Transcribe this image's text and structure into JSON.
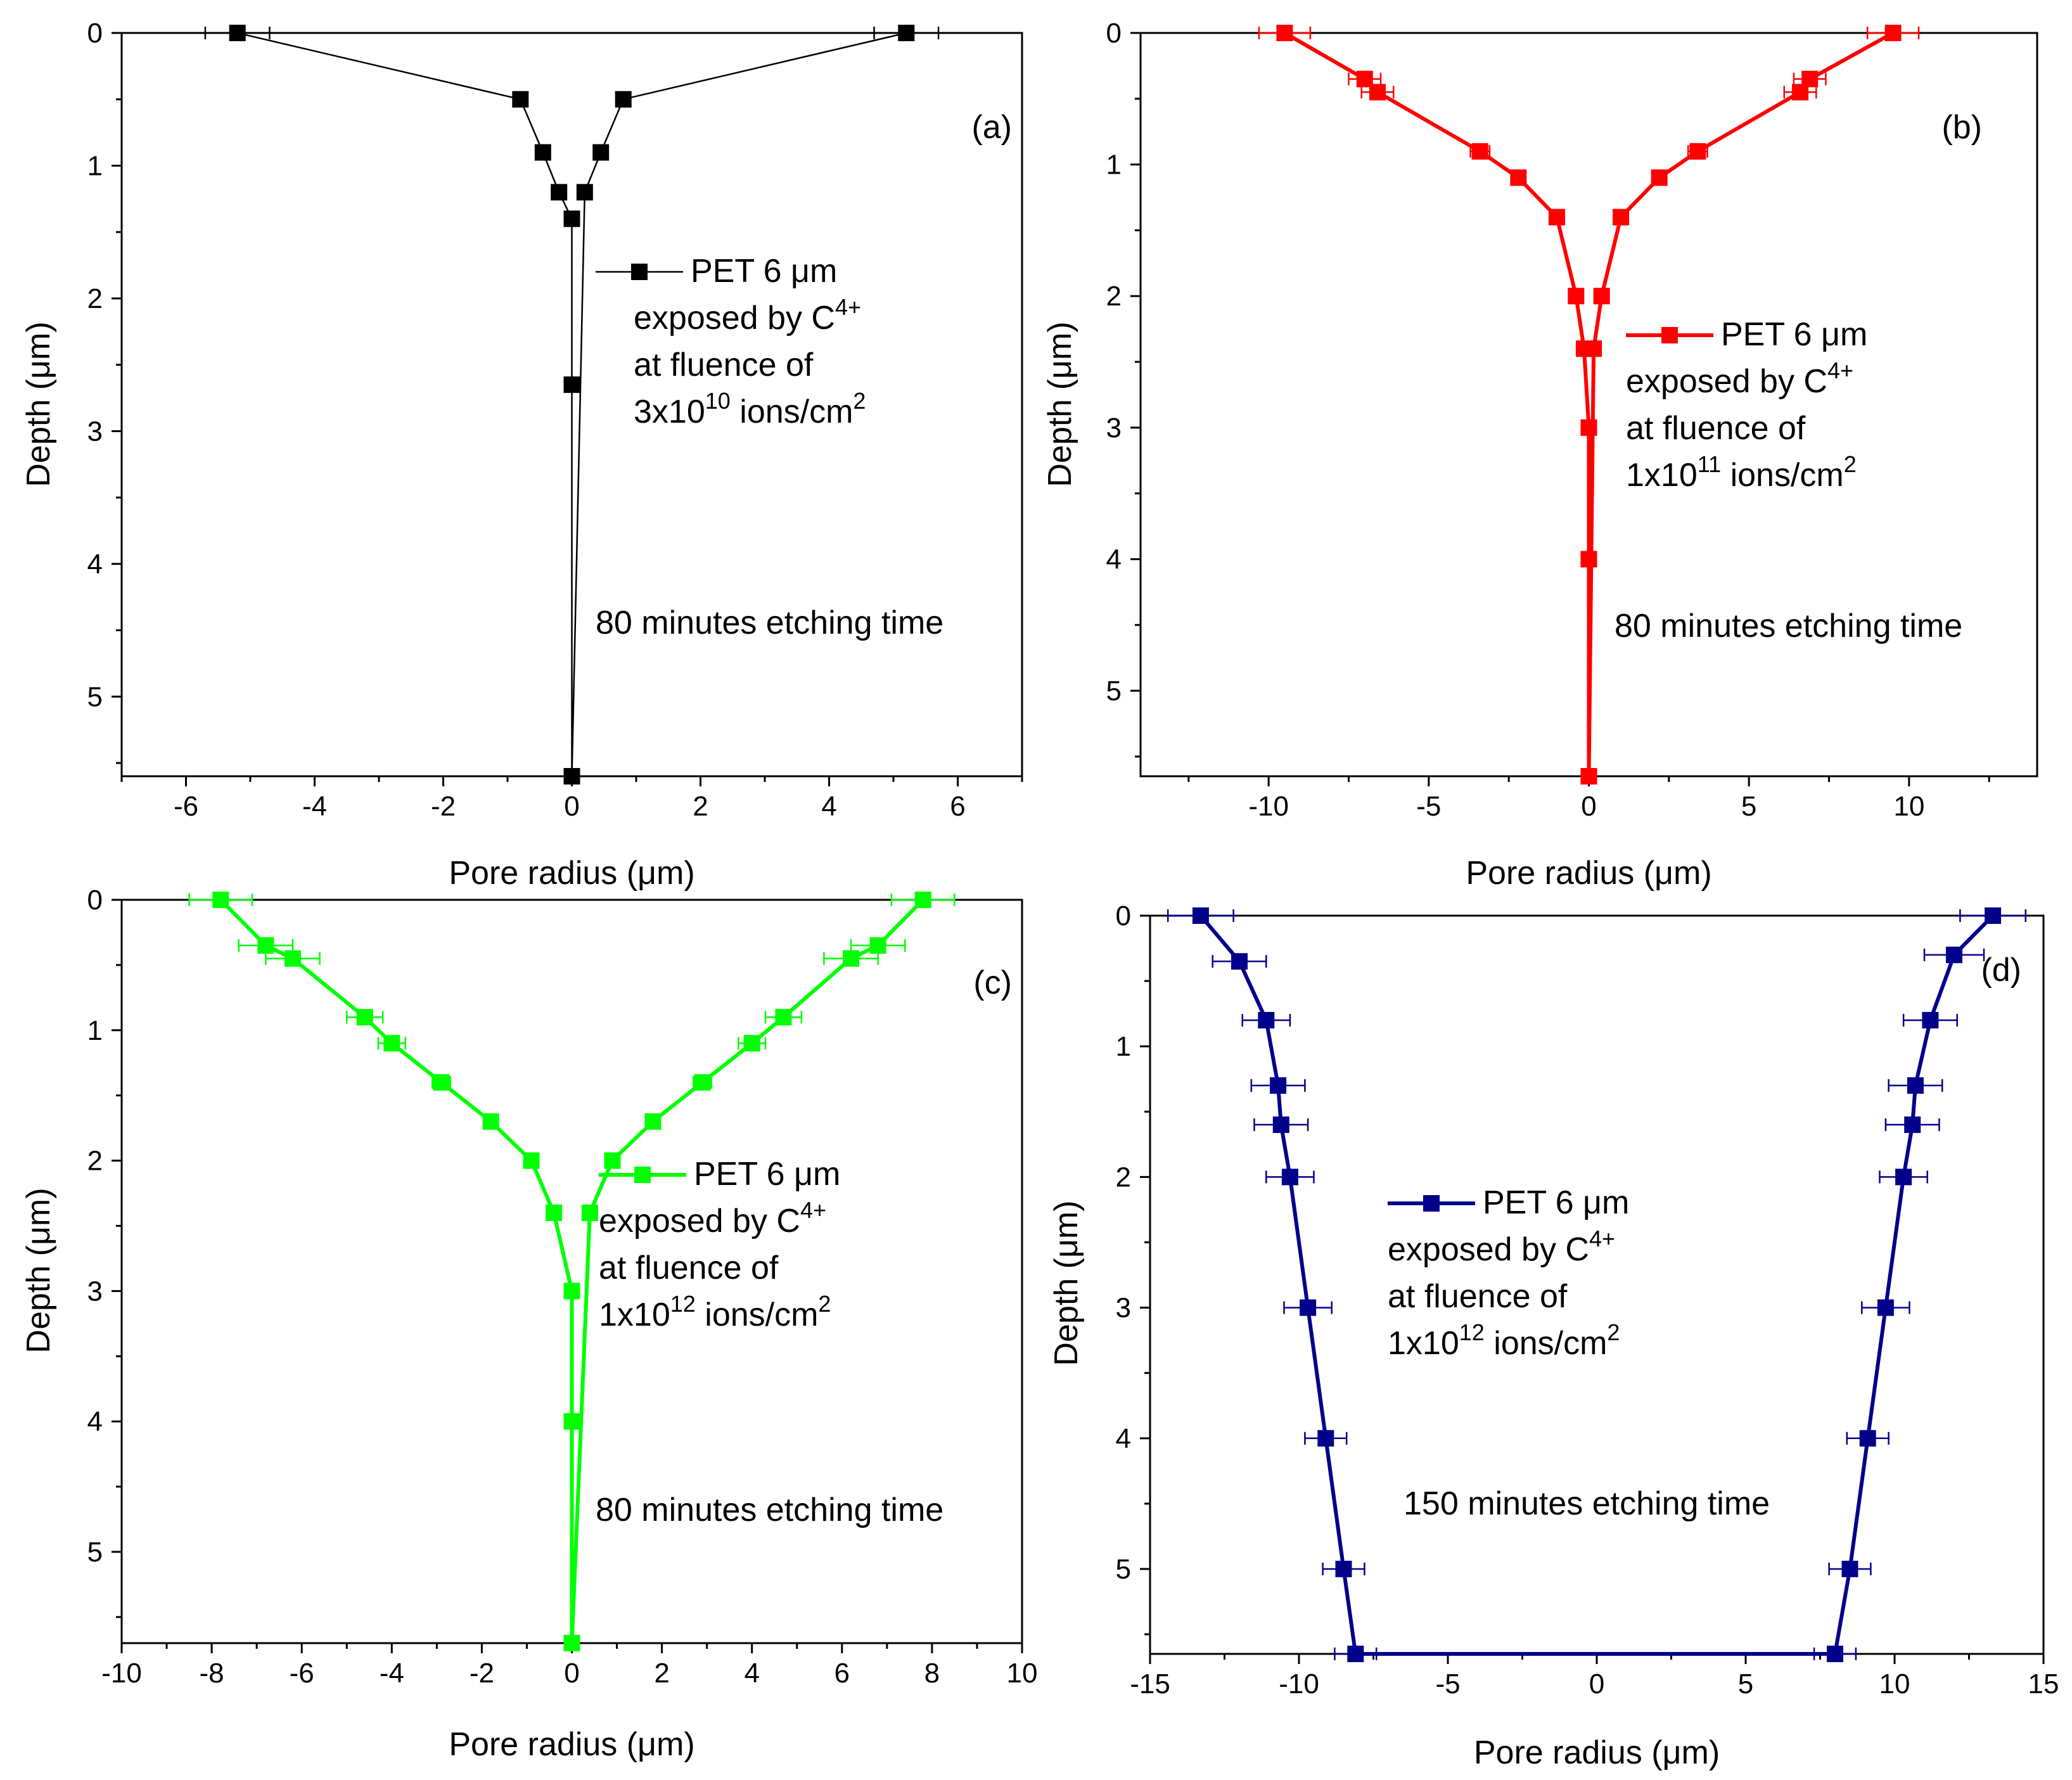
{
  "chart_data": [
    {
      "type": "line",
      "panel_label": "(a)",
      "color": "#000000",
      "xlabel_text": "Pore radius (",
      "xlabel_unit": "μm",
      "xlabel_close": ")",
      "ylabel_text": "Depth (",
      "ylabel_unit": "μm",
      "ylabel_close": ")",
      "xlim": [
        -7,
        7
      ],
      "ylim": [
        0,
        5.6
      ],
      "x_ticks": [
        -6,
        -4,
        -2,
        0,
        2,
        4,
        6
      ],
      "x_tick_labels": [
        "-6",
        "-4",
        "-2",
        "0",
        "2",
        "4",
        "6"
      ],
      "y_ticks": [
        0,
        1,
        2,
        3,
        4,
        5
      ],
      "y_tick_labels": [
        "0",
        "1",
        "2",
        "3",
        "4",
        "5"
      ],
      "legend": {
        "line1_a": "PET 6 ",
        "line1_unit": "μm",
        "line2": "exposed by C",
        "line2_sup": "4+",
        "line3": "at fluence of",
        "line4_a": "3x10",
        "line4_sup": "10",
        "line4_b": " ions/cm",
        "line4_sup2": "2"
      },
      "annotation": "80 minutes etching time",
      "x": [
        -5.2,
        -0.8,
        -0.45,
        -0.2,
        0,
        0,
        0,
        0.2,
        0.45,
        0.8,
        5.2
      ],
      "y": [
        0,
        0.5,
        0.9,
        1.2,
        1.4,
        2.65,
        5.6,
        1.2,
        0.9,
        0.5,
        0
      ],
      "x_err": [
        0.5,
        0,
        0,
        0,
        0,
        0,
        0,
        0,
        0,
        0,
        0.5
      ]
    },
    {
      "type": "line",
      "panel_label": "(b)",
      "color": "#ff0000",
      "xlabel_text": "Pore radius (",
      "xlabel_unit": "μm",
      "xlabel_close": ")",
      "ylabel_text": "Depth (",
      "ylabel_unit": "μm",
      "ylabel_close": ")",
      "xlim": [
        -14,
        14
      ],
      "ylim": [
        0,
        5.65
      ],
      "x_ticks": [
        -10,
        -5,
        0,
        5,
        10
      ],
      "x_tick_labels": [
        "-10",
        "-5",
        "0",
        "5",
        "10"
      ],
      "y_ticks": [
        0,
        1,
        2,
        3,
        4,
        5
      ],
      "y_tick_labels": [
        "0",
        "1",
        "2",
        "3",
        "4",
        "5"
      ],
      "legend": {
        "line1_a": "PET 6 ",
        "line1_unit": "μm",
        "line2": "exposed by C",
        "line2_sup": "4+",
        "line3": "at fluence of",
        "line4_a": "1x10",
        "line4_sup": "11",
        "line4_b": " ions/cm",
        "line4_sup2": "2"
      },
      "annotation": "80 minutes etching time",
      "x": [
        -9.5,
        -7.0,
        -6.6,
        -3.4,
        -2.2,
        -1.0,
        -0.4,
        -0.15,
        0,
        0,
        0,
        0.15,
        0.4,
        1.0,
        2.2,
        3.4,
        6.6,
        6.9,
        9.5
      ],
      "y": [
        0,
        0.35,
        0.45,
        0.9,
        1.1,
        1.4,
        2.0,
        2.4,
        3.0,
        4.0,
        5.65,
        2.4,
        2.0,
        1.4,
        1.1,
        0.9,
        0.45,
        0.35,
        0
      ],
      "x_err": [
        0.8,
        0.5,
        0.5,
        0.3,
        0,
        0,
        0,
        0.2,
        0,
        0,
        0,
        0.2,
        0,
        0,
        0,
        0.3,
        0.5,
        0.5,
        0.8
      ]
    },
    {
      "type": "line",
      "panel_label": "(c)",
      "color": "#00ff00",
      "xlabel_text": "Pore radius (",
      "xlabel_unit": "μm",
      "xlabel_close": ")",
      "ylabel_text": "Depth (",
      "ylabel_unit": "μm",
      "ylabel_close": ")",
      "xlim": [
        -10,
        10
      ],
      "ylim": [
        0,
        5.7
      ],
      "x_ticks": [
        -10,
        -8,
        -6,
        -4,
        -2,
        0,
        2,
        4,
        6,
        8,
        10
      ],
      "x_tick_labels": [
        "-10",
        "-8",
        "-6",
        "-4",
        "-2",
        "0",
        "2",
        "4",
        "6",
        "8",
        "10"
      ],
      "y_ticks": [
        0,
        1,
        2,
        3,
        4,
        5
      ],
      "y_tick_labels": [
        "0",
        "1",
        "2",
        "3",
        "4",
        "5"
      ],
      "legend": {
        "line1_a": "PET 6 ",
        "line1_unit": "μm",
        "line2": "exposed by C",
        "line2_sup": "4+",
        "line3": "at fluence of",
        "line4_a": "1x10",
        "line4_sup": "12",
        "line4_b": " ions/cm",
        "line4_sup2": "2"
      },
      "annotation": "80 minutes etching time",
      "x": [
        -7.8,
        -6.8,
        -6.2,
        -4.6,
        -4.0,
        -2.9,
        -1.8,
        -0.9,
        -0.4,
        0,
        0,
        0,
        0.4,
        0.9,
        1.8,
        2.9,
        4.0,
        4.7,
        6.2,
        6.8,
        7.8
      ],
      "y": [
        0,
        0.35,
        0.45,
        0.9,
        1.1,
        1.4,
        1.7,
        2.0,
        2.4,
        3.0,
        4.0,
        5.7,
        2.4,
        2.0,
        1.7,
        1.4,
        1.1,
        0.9,
        0.45,
        0.35,
        0
      ],
      "x_err": [
        0.7,
        0.6,
        0.6,
        0.4,
        0.3,
        0.2,
        0,
        0,
        0,
        0,
        0,
        0,
        0,
        0,
        0,
        0.2,
        0.3,
        0.4,
        0.6,
        0.6,
        0.7
      ]
    },
    {
      "type": "line",
      "panel_label": "(d)",
      "color": "#00008b",
      "xlabel_text": "Pore radius (",
      "xlabel_unit": "μm",
      "xlabel_close": ")",
      "ylabel_text": "Depth (",
      "ylabel_unit": "μm",
      "ylabel_close": ")",
      "xlim": [
        -15,
        15
      ],
      "ylim": [
        0,
        5.65
      ],
      "x_ticks": [
        -15,
        -10,
        -5,
        0,
        5,
        10,
        15
      ],
      "x_tick_labels": [
        "-15",
        "-10",
        "-5",
        "0",
        "5",
        "10",
        "15"
      ],
      "y_ticks": [
        0,
        1,
        2,
        3,
        4,
        5
      ],
      "y_tick_labels": [
        "0",
        "1",
        "2",
        "3",
        "4",
        "5"
      ],
      "legend": {
        "line1_a": "PET 6 ",
        "line1_unit": "μm",
        "line2": "exposed by C",
        "line2_sup": "4+",
        "line3": "at fluence of",
        "line4_a": "1x10",
        "line4_sup": "12",
        "line4_b": " ions/cm",
        "line4_sup2": "2"
      },
      "annotation": "150 minutes etching time",
      "x": [
        -13.3,
        -12.0,
        -11.1,
        -10.7,
        -10.6,
        -10.3,
        -9.7,
        -9.1,
        -8.5,
        -8.1,
        8.0,
        8.5,
        9.1,
        9.7,
        10.3,
        10.6,
        10.7,
        11.2,
        12.0,
        13.3
      ],
      "y": [
        0,
        0.35,
        0.8,
        1.3,
        1.6,
        2.0,
        3.0,
        4.0,
        5.0,
        5.65,
        5.65,
        5.0,
        4.0,
        3.0,
        2.0,
        1.6,
        1.3,
        0.8,
        0.3,
        0
      ],
      "x_err": [
        1.1,
        0.9,
        0.8,
        0.9,
        0.9,
        0.8,
        0.8,
        0.7,
        0.7,
        0.7,
        0.7,
        0.7,
        0.7,
        0.8,
        0.8,
        0.9,
        0.9,
        0.9,
        1.0,
        1.1
      ]
    }
  ]
}
